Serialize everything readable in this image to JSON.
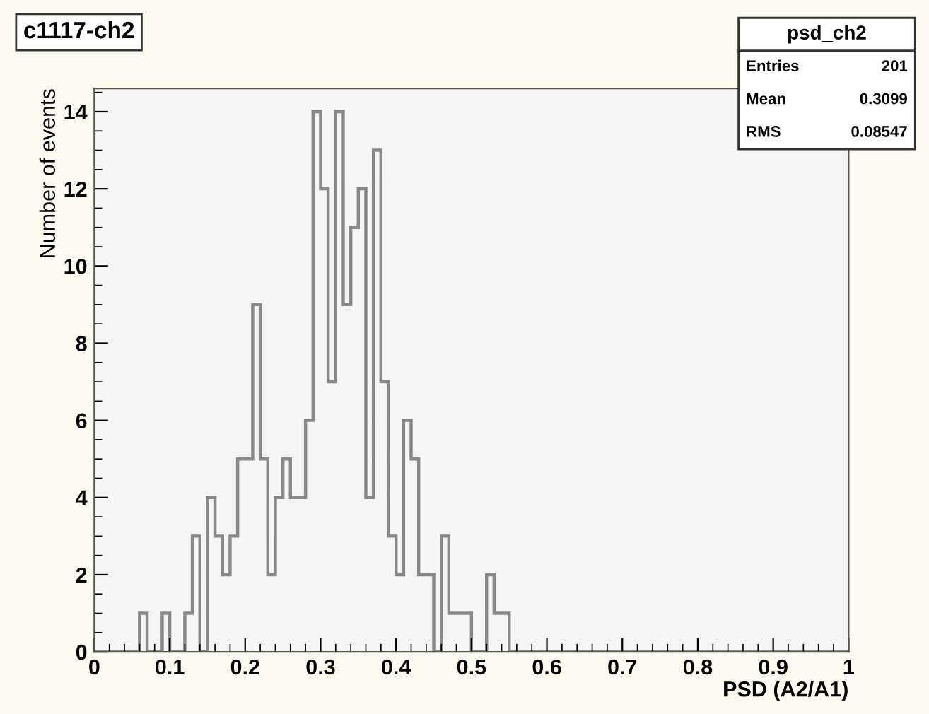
{
  "chart_data": {
    "type": "histogram",
    "title": "c1117-ch2",
    "xlabel": "PSD (A2/A1)",
    "ylabel": "Number of events",
    "annotations": [
      "psd_ch2",
      "Entries",
      "201",
      "Mean",
      "0.3099",
      "RMS",
      "0.08547"
    ],
    "bins": [
      0,
      0.01,
      0.02,
      0.03,
      0.04,
      0.05,
      0.06,
      0.07,
      0.08,
      0.09,
      0.1,
      0.11,
      0.12,
      0.13,
      0.14,
      0.15,
      0.16,
      0.17,
      0.18,
      0.19,
      0.2,
      0.21,
      0.22,
      0.23,
      0.24,
      0.25,
      0.26,
      0.27,
      0.28,
      0.29,
      0.3,
      0.31,
      0.32,
      0.33,
      0.34,
      0.35,
      0.36,
      0.37,
      0.38,
      0.39,
      0.4,
      0.41,
      0.42,
      0.43,
      0.44,
      0.45,
      0.46,
      0.47,
      0.48,
      0.49,
      0.5,
      0.51,
      0.52,
      0.53,
      0.54,
      0.55,
      0.56,
      0.57,
      0.58,
      0.59,
      0.6,
      0.61,
      0.62,
      0.63,
      0.64,
      0.65,
      0.66,
      0.67,
      0.68,
      0.69,
      0.7,
      0.71,
      0.72,
      0.73,
      0.74,
      0.75,
      0.76,
      0.77,
      0.78,
      0.79,
      0.8,
      0.81,
      0.82,
      0.83,
      0.84,
      0.85,
      0.86,
      0.87,
      0.88,
      0.89,
      0.9,
      0.91,
      0.92,
      0.93,
      0.94,
      0.95,
      0.96,
      0.97,
      0.98,
      0.99,
      1
    ],
    "values": [
      0,
      0,
      0,
      0,
      0,
      0,
      1,
      0,
      0,
      1,
      0,
      0,
      1,
      3,
      0,
      4,
      3,
      2,
      3,
      5,
      5,
      9,
      5,
      2,
      4,
      5,
      4,
      4,
      6,
      14,
      12,
      7,
      14,
      9,
      11,
      12,
      4,
      13,
      7,
      3,
      2,
      6,
      5,
      2,
      2,
      0,
      3,
      1,
      1,
      1,
      0,
      0,
      2,
      1,
      1,
      0,
      0,
      0,
      0,
      0,
      0,
      0,
      0,
      0,
      0,
      0,
      0,
      0,
      0,
      0,
      0,
      0,
      0,
      0,
      0,
      0,
      0,
      0,
      0,
      0,
      0,
      0,
      0,
      0,
      0,
      0,
      0,
      0,
      0,
      0,
      0,
      0,
      0,
      0,
      0,
      0,
      0,
      0,
      0,
      0
    ],
    "color": "#888888",
    "xlim": [
      0,
      1
    ],
    "ylim": [
      0,
      14.6
    ],
    "xticks": [
      0,
      0.1,
      0.2,
      0.3,
      0.4,
      0.5,
      0.6,
      0.7,
      0.8,
      0.9,
      1
    ],
    "yticks": [
      0,
      2,
      4,
      6,
      8,
      10,
      12,
      14
    ],
    "grid": false,
    "legend": false
  }
}
